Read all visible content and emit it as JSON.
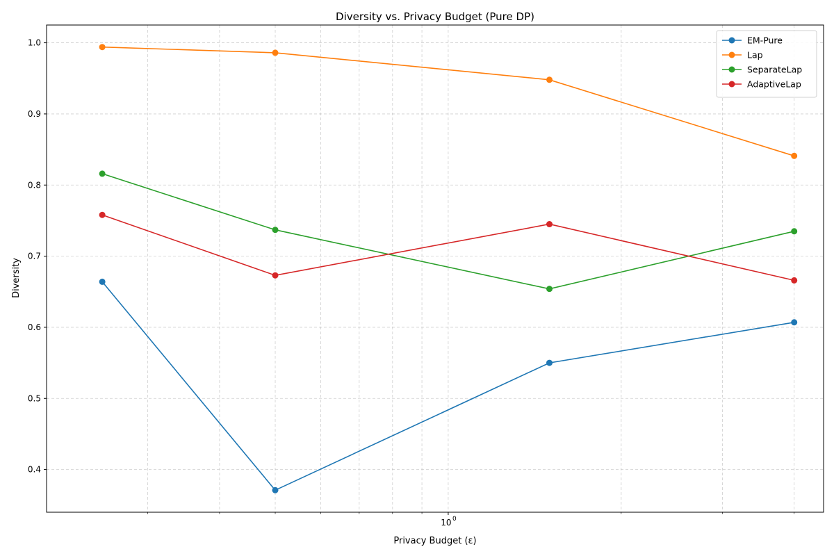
{
  "chart_data": {
    "type": "line",
    "title": "Diversity vs. Privacy Budget (Pure DP)",
    "xlabel": "Privacy Budget (ε)",
    "ylabel": "Diversity",
    "xscale": "log",
    "x": [
      0.25,
      0.5,
      1.5,
      4.0
    ],
    "xlim": [
      0.2,
      4.5
    ],
    "ylim": [
      0.34,
      1.025
    ],
    "yticks": [
      0.4,
      0.5,
      0.6,
      0.7,
      0.8,
      0.9,
      1.0
    ],
    "ytick_labels": [
      "0.4",
      "0.5",
      "0.6",
      "0.7",
      "0.8",
      "0.9",
      "1.0"
    ],
    "xtick_major_label": "10",
    "xtick_major_exponent": "0",
    "grid": true,
    "legend_position": "top-right",
    "series": [
      {
        "name": "EM-Pure",
        "color": "#1f77b4",
        "values": [
          0.664,
          0.371,
          0.55,
          0.607
        ]
      },
      {
        "name": "Lap",
        "color": "#ff7f0e",
        "values": [
          0.994,
          0.986,
          0.948,
          0.841
        ]
      },
      {
        "name": "SeparateLap",
        "color": "#2ca02c",
        "values": [
          0.816,
          0.737,
          0.654,
          0.735
        ]
      },
      {
        "name": "AdaptiveLap",
        "color": "#d62728",
        "values": [
          0.758,
          0.673,
          0.745,
          0.666
        ]
      }
    ]
  }
}
